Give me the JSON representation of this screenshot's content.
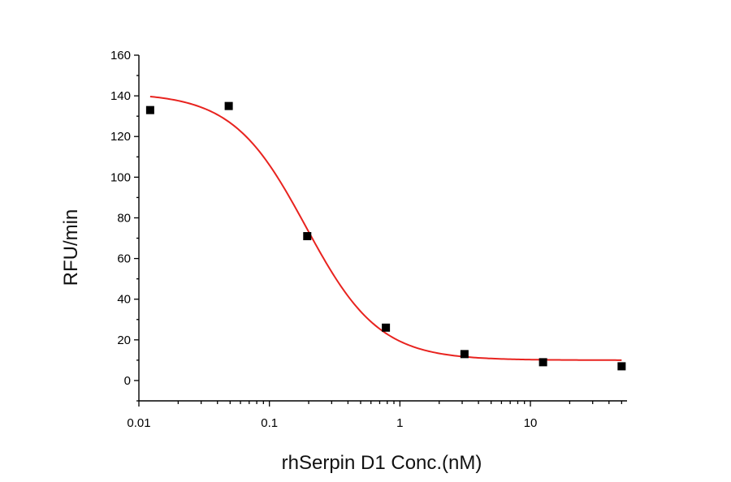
{
  "chart_data": {
    "type": "scatter",
    "title": "",
    "xlabel": "rhSerpin D1 Conc.(nM)",
    "ylabel": "RFU/min",
    "xscale": "log",
    "xlim": [
      0.01,
      55
    ],
    "ylim": [
      -10,
      160
    ],
    "xticks": [
      0.01,
      0.1,
      1,
      10
    ],
    "xtick_labels": [
      "0.01",
      "0.1",
      "1",
      "10"
    ],
    "yticks": [
      0,
      20,
      40,
      60,
      80,
      100,
      120,
      140,
      160
    ],
    "ytick_labels": [
      "0",
      "20",
      "40",
      "60",
      "80",
      "100",
      "120",
      "140",
      "160"
    ],
    "grid": false,
    "series": [
      {
        "type": "scatter",
        "marker": "square",
        "color": "#000000",
        "x": [
          0.0122,
          0.0488,
          0.195,
          0.781,
          3.125,
          12.5,
          50
        ],
        "y": [
          133,
          135,
          71,
          26,
          13,
          9,
          7
        ]
      },
      {
        "type": "line",
        "color": "#e8231f",
        "fit": {
          "model": "4PL",
          "top": 141.5,
          "bottom": 10,
          "ec50": 0.19,
          "hill": 1.55
        },
        "x_range": [
          0.0122,
          50
        ]
      }
    ]
  }
}
